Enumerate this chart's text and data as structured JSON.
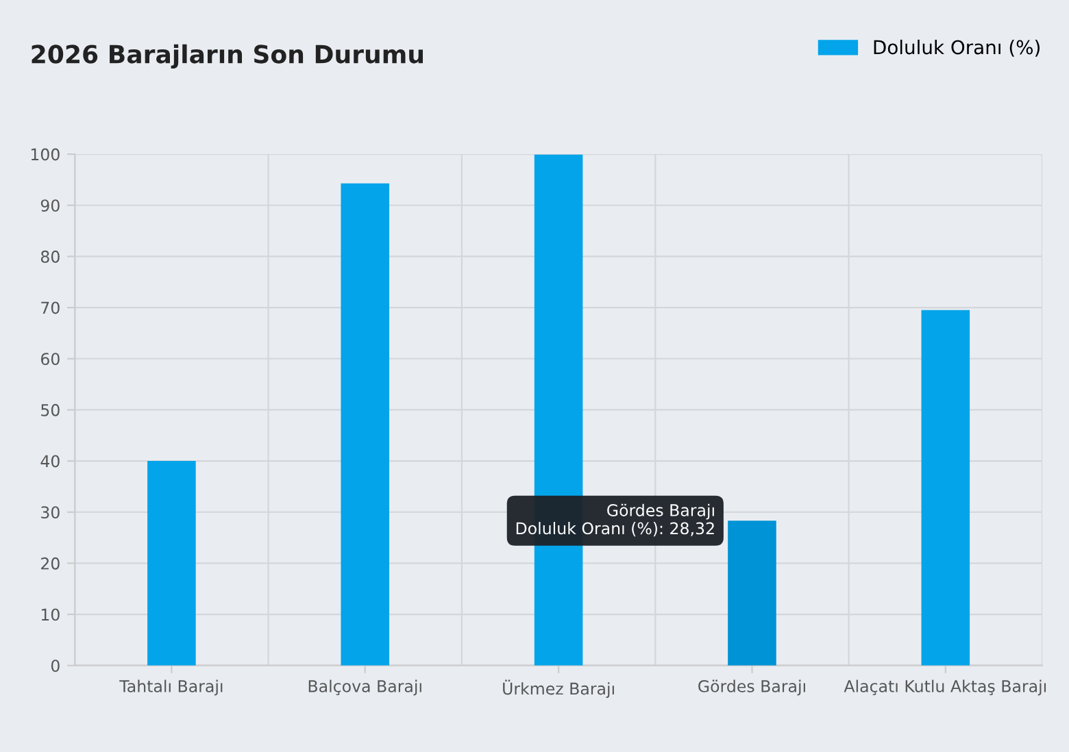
{
  "chart_data": {
    "type": "bar",
    "title": "2026 Barajların Son Durumu",
    "categories": [
      "Tahtalı Barajı",
      "Balçova Barajı",
      "Ürkmez Barajı",
      "Gördes Barajı",
      "Alaçatı Kutlu Aktaş Barajı"
    ],
    "series": [
      {
        "name": "Doluluk Oranı (%)",
        "color": "#03a4ea",
        "colors": [
          "#03a4ea",
          "#03a4ea",
          "#03a4ea",
          "#0093d6",
          "#03a4ea"
        ],
        "values": [
          40.0,
          94.3,
          99.9,
          28.32,
          69.5
        ]
      }
    ],
    "ylim": [
      0,
      100
    ],
    "yticks": [
      0,
      10,
      20,
      30,
      40,
      50,
      60,
      70,
      80,
      90,
      100
    ],
    "grid": true,
    "legend": "top right",
    "annotations": [
      {
        "text": "Gördes Barajı\nDoluluk Oranı (%): 28,32",
        "x": "Gördes Barajı",
        "y": 28.32
      }
    ]
  }
}
